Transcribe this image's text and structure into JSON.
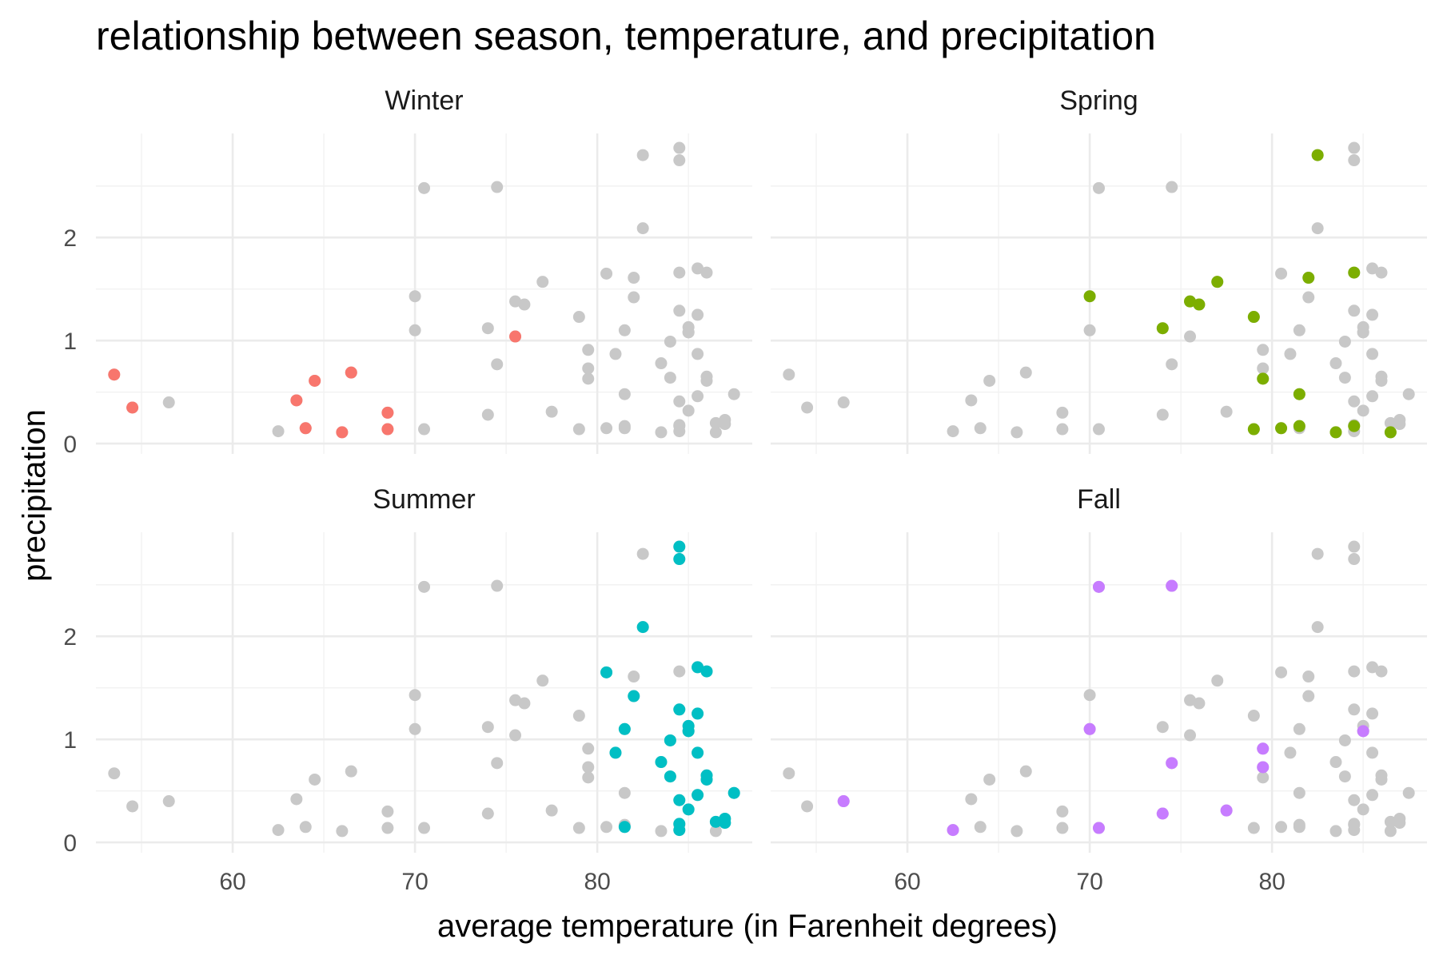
{
  "chart_data": {
    "type": "scatter",
    "title": "relationship between season, temperature, and precipitation",
    "xlabel": "average temperature (in Farenheit degrees)",
    "ylabel": "precipitation",
    "xlim": [
      52.5,
      88.5
    ],
    "ylim": [
      -0.1,
      3.01
    ],
    "x_ticks": [
      60,
      70,
      80
    ],
    "y_ticks": [
      0,
      1,
      2
    ],
    "grid": true,
    "legend": "none",
    "background_point_color": "#c8c8c8",
    "panels": [
      {
        "name": "Winter",
        "color": "#f8766d"
      },
      {
        "name": "Spring",
        "color": "#7cae00"
      },
      {
        "name": "Summer",
        "color": "#00bfc4"
      },
      {
        "name": "Fall",
        "color": "#c77cff"
      }
    ],
    "points": [
      {
        "season": "Winter",
        "x": 53.5,
        "y": 0.67
      },
      {
        "season": "Winter",
        "x": 54.5,
        "y": 0.35
      },
      {
        "season": "Winter",
        "x": 63.5,
        "y": 0.42
      },
      {
        "season": "Winter",
        "x": 64.0,
        "y": 0.15
      },
      {
        "season": "Winter",
        "x": 64.5,
        "y": 0.61
      },
      {
        "season": "Winter",
        "x": 66.0,
        "y": 0.11
      },
      {
        "season": "Winter",
        "x": 66.5,
        "y": 0.69
      },
      {
        "season": "Winter",
        "x": 68.5,
        "y": 0.3
      },
      {
        "season": "Winter",
        "x": 68.5,
        "y": 0.14
      },
      {
        "season": "Winter",
        "x": 75.5,
        "y": 1.04
      },
      {
        "season": "Spring",
        "x": 70.0,
        "y": 1.43
      },
      {
        "season": "Spring",
        "x": 74.0,
        "y": 1.12
      },
      {
        "season": "Spring",
        "x": 75.5,
        "y": 1.38
      },
      {
        "season": "Spring",
        "x": 76.0,
        "y": 1.35
      },
      {
        "season": "Spring",
        "x": 77.0,
        "y": 1.57
      },
      {
        "season": "Spring",
        "x": 79.0,
        "y": 1.23
      },
      {
        "season": "Spring",
        "x": 79.5,
        "y": 0.63
      },
      {
        "season": "Spring",
        "x": 79.0,
        "y": 0.14
      },
      {
        "season": "Spring",
        "x": 80.5,
        "y": 0.15
      },
      {
        "season": "Spring",
        "x": 81.5,
        "y": 0.48
      },
      {
        "season": "Spring",
        "x": 81.5,
        "y": 0.17
      },
      {
        "season": "Spring",
        "x": 82.0,
        "y": 1.61
      },
      {
        "season": "Spring",
        "x": 82.5,
        "y": 2.8
      },
      {
        "season": "Spring",
        "x": 83.5,
        "y": 0.11
      },
      {
        "season": "Spring",
        "x": 84.5,
        "y": 1.66
      },
      {
        "season": "Spring",
        "x": 84.5,
        "y": 0.17
      },
      {
        "season": "Spring",
        "x": 86.5,
        "y": 0.11
      },
      {
        "season": "Summer",
        "x": 80.5,
        "y": 1.65
      },
      {
        "season": "Summer",
        "x": 81.0,
        "y": 0.87
      },
      {
        "season": "Summer",
        "x": 81.5,
        "y": 1.1
      },
      {
        "season": "Summer",
        "x": 81.5,
        "y": 0.15
      },
      {
        "season": "Summer",
        "x": 82.0,
        "y": 1.42
      },
      {
        "season": "Summer",
        "x": 82.5,
        "y": 2.09
      },
      {
        "season": "Summer",
        "x": 83.5,
        "y": 0.78
      },
      {
        "season": "Summer",
        "x": 84.0,
        "y": 0.99
      },
      {
        "season": "Summer",
        "x": 84.0,
        "y": 0.64
      },
      {
        "season": "Summer",
        "x": 84.5,
        "y": 2.87
      },
      {
        "season": "Summer",
        "x": 84.5,
        "y": 2.75
      },
      {
        "season": "Summer",
        "x": 84.5,
        "y": 1.29
      },
      {
        "season": "Summer",
        "x": 84.5,
        "y": 0.41
      },
      {
        "season": "Summer",
        "x": 84.5,
        "y": 0.18
      },
      {
        "season": "Summer",
        "x": 84.5,
        "y": 0.12
      },
      {
        "season": "Summer",
        "x": 85.0,
        "y": 1.13
      },
      {
        "season": "Summer",
        "x": 85.0,
        "y": 1.08
      },
      {
        "season": "Summer",
        "x": 85.0,
        "y": 0.32
      },
      {
        "season": "Summer",
        "x": 85.5,
        "y": 1.7
      },
      {
        "season": "Summer",
        "x": 85.5,
        "y": 1.25
      },
      {
        "season": "Summer",
        "x": 85.5,
        "y": 0.87
      },
      {
        "season": "Summer",
        "x": 85.5,
        "y": 0.46
      },
      {
        "season": "Summer",
        "x": 86.0,
        "y": 1.66
      },
      {
        "season": "Summer",
        "x": 86.0,
        "y": 0.65
      },
      {
        "season": "Summer",
        "x": 86.0,
        "y": 0.61
      },
      {
        "season": "Summer",
        "x": 86.5,
        "y": 0.2
      },
      {
        "season": "Summer",
        "x": 87.0,
        "y": 0.23
      },
      {
        "season": "Summer",
        "x": 87.0,
        "y": 0.19
      },
      {
        "season": "Summer",
        "x": 87.5,
        "y": 0.48
      },
      {
        "season": "Fall",
        "x": 56.5,
        "y": 0.4
      },
      {
        "season": "Fall",
        "x": 62.5,
        "y": 0.12
      },
      {
        "season": "Fall",
        "x": 70.0,
        "y": 1.1
      },
      {
        "season": "Fall",
        "x": 70.5,
        "y": 2.48
      },
      {
        "season": "Fall",
        "x": 70.5,
        "y": 0.14
      },
      {
        "season": "Fall",
        "x": 74.0,
        "y": 0.28
      },
      {
        "season": "Fall",
        "x": 74.5,
        "y": 2.49
      },
      {
        "season": "Fall",
        "x": 74.5,
        "y": 0.77
      },
      {
        "season": "Fall",
        "x": 77.5,
        "y": 0.31
      },
      {
        "season": "Fall",
        "x": 79.5,
        "y": 0.91
      },
      {
        "season": "Fall",
        "x": 79.5,
        "y": 0.73
      },
      {
        "season": "Fall",
        "x": 85.0,
        "y": 1.08
      }
    ]
  }
}
